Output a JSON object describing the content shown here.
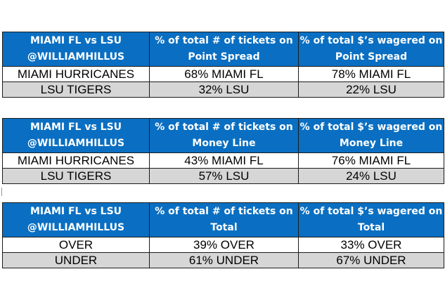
{
  "tables": [
    {
      "header": {
        "col1": [
          "MIAMI FL vs LSU",
          "@WILLIAMHILLUS"
        ],
        "col2": [
          "% of total # of tickets on",
          "Point Spread"
        ],
        "col3": [
          "% of total $’s wagered on",
          "Point Spread"
        ]
      },
      "rows": [
        {
          "team": "MIAMI HURRICANES",
          "tickets": "68% MIAMI FL",
          "wagered": "78% MIAMI FL"
        },
        {
          "team": "LSU TIGERS",
          "tickets": "32% LSU",
          "wagered": "22% LSU"
        }
      ]
    },
    {
      "header": {
        "col1": [
          "MIAMI FL vs LSU",
          "@WILLIAMHILLUS"
        ],
        "col2": [
          "% of total # of tickets on",
          "Money Line"
        ],
        "col3": [
          "% of total $’s wagered on",
          "Money Line"
        ]
      },
      "rows": [
        {
          "team": "MIAMI HURRICANES",
          "tickets": "43% MIAMI FL",
          "wagered": "76% MIAMI FL"
        },
        {
          "team": "LSU TIGERS",
          "tickets": "57% LSU",
          "wagered": "24% LSU"
        }
      ]
    },
    {
      "header": {
        "col1": [
          "MIAMI FL vs LSU",
          "@WILLIAMHILLUS"
        ],
        "col2": [
          "% of total # of tickets on",
          "Total"
        ],
        "col3": [
          "% of total $’s wagered on",
          "Total"
        ]
      },
      "rows": [
        {
          "team": "OVER",
          "tickets": "39% OVER",
          "wagered": "33% OVER"
        },
        {
          "team": "UNDER",
          "tickets": "61% UNDER",
          "wagered": "67% UNDER"
        }
      ]
    }
  ],
  "colors": {
    "header_bg": "#0a6fc2",
    "header_text": "#ffffff",
    "alt_row_bg": "#d6d6d6",
    "border": "#1a1a1a"
  }
}
